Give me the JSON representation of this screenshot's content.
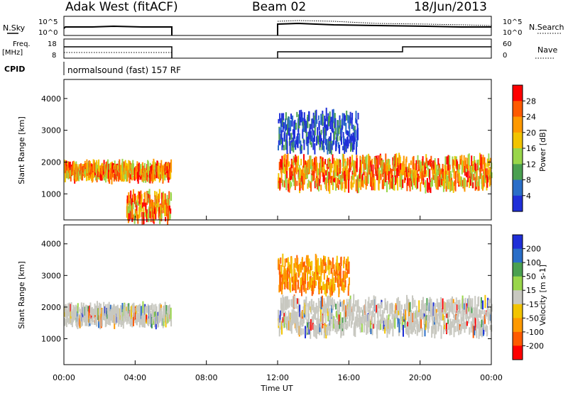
{
  "header": {
    "station": "Adak West (fitACF)",
    "beam": "Beam 02",
    "date": "18/Jun/2013"
  },
  "top_panels": {
    "nsky_label": "N.Sky",
    "nsearch_label": "N.Search",
    "nsky_ticks": [
      "10^5",
      "10^0"
    ],
    "nsearch_ticks": [
      "10^5",
      "10^0"
    ],
    "freq_label_line1": "Freq.",
    "freq_label_line2": "[MHz]",
    "freq_ticks": [
      "18",
      "8"
    ],
    "nave_label": "Nave",
    "nave_ticks": [
      "60",
      "0"
    ],
    "cpid_label": "CPID",
    "cpid_text": "normalsound (fast) 157 RF"
  },
  "chart_data": [
    {
      "type": "heatmap",
      "title": "",
      "xlabel": "",
      "ylabel": "Slant Range [km]",
      "ylim": [
        180,
        4600
      ],
      "yticks": [
        "4000",
        "3000",
        "2000",
        "1000"
      ],
      "colorbar": {
        "label": "Power [dB]",
        "ticks": [
          "28",
          "24",
          "20",
          "16",
          "12",
          "8",
          "4"
        ],
        "colors": [
          "#ff0000",
          "#ff5a00",
          "#ff9900",
          "#f2c400",
          "#99d64a",
          "#4aa050",
          "#2a6ec8",
          "#1f2fd8"
        ]
      },
      "data_windows_ut": [
        [
          "00:00",
          "06:00"
        ],
        [
          "12:00",
          "24:00"
        ]
      ],
      "echo_bands": [
        {
          "t_start": 0.0,
          "t_end": 6.0,
          "range_km": [
            1500,
            1900
          ],
          "value": "20-28 dB"
        },
        {
          "t_start": 3.5,
          "t_end": 6.0,
          "range_km": [
            200,
            1000
          ],
          "value": "28 dB"
        },
        {
          "t_start": 12.0,
          "t_end": 24.0,
          "range_km": [
            1200,
            2100
          ],
          "value": "16-28 dB"
        },
        {
          "t_start": 12.0,
          "t_end": 16.5,
          "range_km": [
            2400,
            3500
          ],
          "value": "4-8 dB"
        }
      ]
    },
    {
      "type": "heatmap",
      "title": "",
      "xlabel": "Time UT",
      "ylabel": "Slant Range [km]",
      "ylim": [
        180,
        4600
      ],
      "yticks": [
        "4000",
        "3000",
        "2000",
        "1000"
      ],
      "xticks": [
        "00:00",
        "04:00",
        "08:00",
        "12:00",
        "16:00",
        "20:00",
        "00:00"
      ],
      "colorbar": {
        "label": "Velocity [m s-1]",
        "ticks": [
          "200",
          "100",
          "50",
          "15",
          "-15",
          "-50",
          "-100",
          "-200"
        ],
        "colors": [
          "#1f2fd8",
          "#2a6ec8",
          "#4aa050",
          "#99d64a",
          "#c8c8c0",
          "#f2c400",
          "#ff9900",
          "#ff5a00",
          "#ff0000"
        ]
      },
      "data_windows_ut": [
        [
          "00:00",
          "06:00"
        ],
        [
          "12:00",
          "24:00"
        ]
      ],
      "echo_bands": [
        {
          "t_start": 0.0,
          "t_end": 6.0,
          "range_km": [
            1500,
            2000
          ],
          "value": "-15 to 15"
        },
        {
          "t_start": 12.0,
          "t_end": 24.0,
          "range_km": [
            1200,
            2200
          ],
          "value": "-15 to 15"
        },
        {
          "t_start": 12.0,
          "t_end": 16.0,
          "range_km": [
            2500,
            3500
          ],
          "value": "-50 to -100"
        }
      ]
    }
  ]
}
